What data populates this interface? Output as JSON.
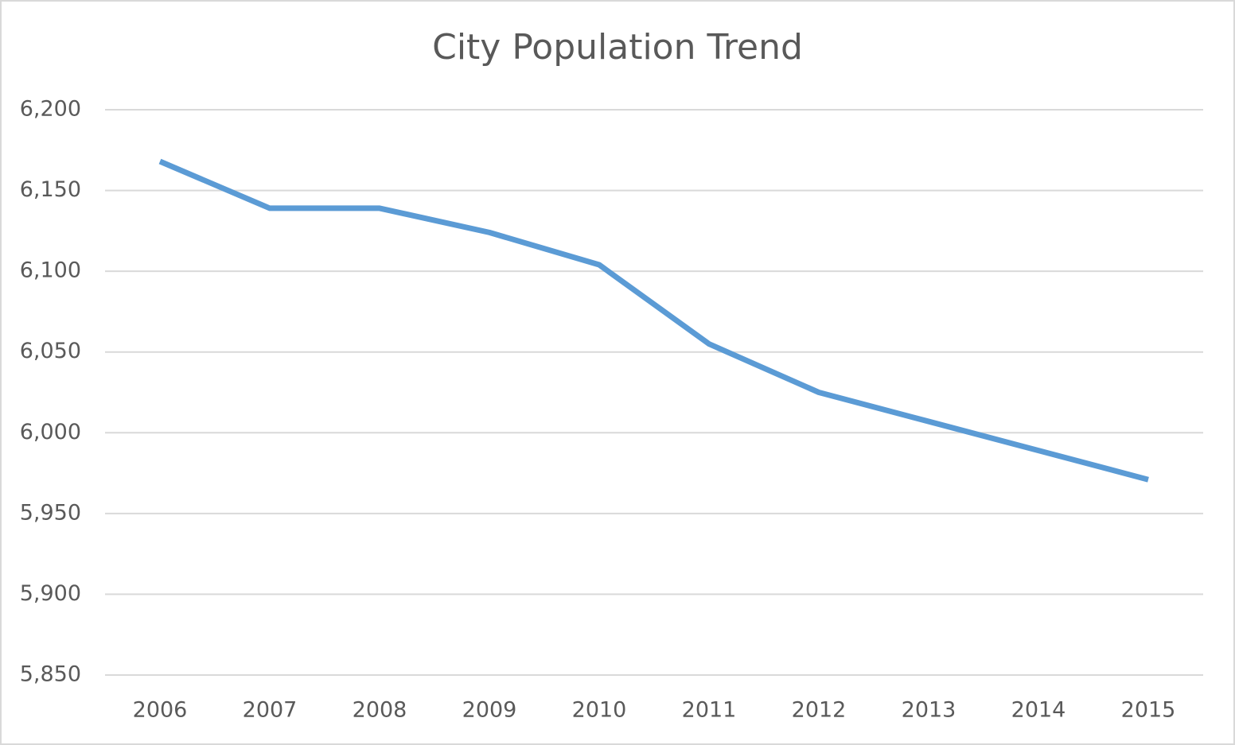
{
  "chart_data": {
    "type": "line",
    "title": "City Population Trend",
    "categories": [
      "2006",
      "2007",
      "2008",
      "2009",
      "2010",
      "2011",
      "2012",
      "2013",
      "2014",
      "2015"
    ],
    "values": [
      6168,
      6139,
      6139,
      6124,
      6104,
      6055,
      6025,
      6007,
      5989,
      5971
    ],
    "color": "#5b9bd5",
    "ylim": [
      5850,
      6200
    ],
    "yticks": [
      {
        "value": 5850,
        "label": "5,850"
      },
      {
        "value": 5900,
        "label": "5,900"
      },
      {
        "value": 5950,
        "label": "5,950"
      },
      {
        "value": 6000,
        "label": "6,000"
      },
      {
        "value": 6050,
        "label": "6,050"
      },
      {
        "value": 6100,
        "label": "6,100"
      },
      {
        "value": 6150,
        "label": "6,150"
      },
      {
        "value": 6200,
        "label": "6,200"
      }
    ],
    "grid": true
  }
}
